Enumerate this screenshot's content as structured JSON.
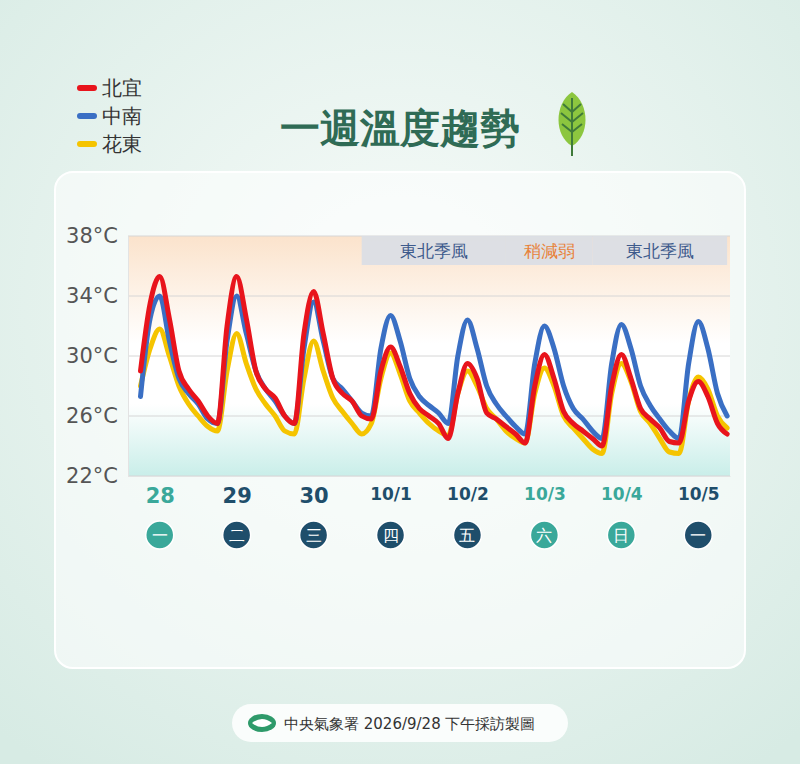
{
  "chart_data": {
    "type": "line",
    "title": "一週溫度趨勢",
    "source": "中央氣象署 2026/9/28 下午採訪製圖",
    "legend": "top-left",
    "grid": true,
    "categories": [
      null,
      null,
      "28",
      null,
      null,
      null,
      null,
      null,
      null,
      null,
      "29",
      null,
      null,
      null,
      null,
      null,
      null,
      null,
      "30",
      null,
      null,
      null,
      null,
      null,
      null,
      null,
      "10/1",
      null,
      null,
      null,
      null,
      null,
      null,
      null,
      "10/2",
      null,
      null,
      null,
      null,
      null,
      null,
      null,
      "10/3",
      null,
      null,
      null,
      null,
      null,
      null,
      null,
      "10/4",
      null,
      null,
      null,
      null,
      null,
      null,
      null,
      "10/5",
      null,
      null,
      null
    ],
    "weekdays": [
      "一",
      "二",
      "三",
      "四",
      "五",
      "六",
      "日",
      "一"
    ],
    "ylim": [
      22,
      38
    ],
    "yticks": [
      {
        "value": 22,
        "label": "22°C"
      },
      {
        "value": 26,
        "label": "26°C"
      },
      {
        "value": 30,
        "label": "30°C"
      },
      {
        "value": 34,
        "label": "34°C"
      },
      {
        "value": 38,
        "label": "38°C"
      }
    ],
    "annotations": [
      {
        "text": "東北季風",
        "start": 23,
        "end": 38,
        "color": "#3d5a8c"
      },
      {
        "text": "稍減弱",
        "start": 38,
        "end": 47,
        "color": "#e8823a"
      },
      {
        "text": "東北季風",
        "start": 47,
        "end": 61,
        "color": "#3d5a8c"
      }
    ],
    "series": [
      {
        "name": "北宜",
        "color": "#e8141c",
        "values": [
          29,
          33.5,
          35.3,
          32.5,
          29,
          27.8,
          27,
          26,
          25.5,
          32,
          35.3,
          32.5,
          29,
          27.8,
          27.2,
          26,
          25.5,
          31.5,
          34.3,
          31.5,
          28.5,
          27.5,
          27,
          26,
          25.8,
          29,
          30.6,
          29.3,
          27.5,
          26.5,
          26,
          25.5,
          24.5,
          27.5,
          29.5,
          28.5,
          26.2,
          25.8,
          25.3,
          24.8,
          24.2,
          28,
          30.1,
          28.5,
          26.3,
          25.5,
          25,
          24.5,
          24,
          28,
          30.1,
          28.5,
          26.5,
          25.8,
          25.2,
          24.3,
          24.2,
          27,
          28.3,
          27.3,
          25.5,
          24.8
        ]
      },
      {
        "name": "中南",
        "color": "#3a6fc4",
        "values": [
          27.3,
          32.5,
          34,
          31,
          28.5,
          27.5,
          26.8,
          25.8,
          25.5,
          31,
          34,
          31.5,
          29,
          27.8,
          27,
          26,
          25.5,
          30.5,
          33.6,
          31,
          28.5,
          27.8,
          27,
          26.2,
          26,
          30.5,
          32.7,
          31,
          28.5,
          27.3,
          26.7,
          26.2,
          25.5,
          30,
          32.4,
          30.5,
          28,
          26.8,
          26,
          25.3,
          24.8,
          29.5,
          32,
          30.5,
          28,
          26.5,
          25.8,
          25,
          24.5,
          29.5,
          32.1,
          30.5,
          28,
          26.7,
          25.8,
          25,
          24.5,
          29.5,
          32.3,
          30.5,
          27.5,
          26
        ]
      },
      {
        "name": "花東",
        "color": "#f5c400",
        "values": [
          28,
          30.5,
          31.8,
          30,
          28,
          26.8,
          26,
          25.3,
          25,
          29,
          31.5,
          29.5,
          27.8,
          26.8,
          26,
          25,
          24.8,
          28.5,
          31,
          29,
          27.2,
          26.3,
          25.5,
          24.8,
          25.5,
          28.5,
          30.2,
          28.8,
          27,
          26.2,
          25.5,
          25,
          24.7,
          27.5,
          29,
          28,
          26.5,
          25.8,
          25,
          24.5,
          24.2,
          27.5,
          29.2,
          28,
          26,
          25.2,
          24.5,
          23.8,
          23.5,
          27.5,
          29.5,
          28.3,
          26.3,
          25.5,
          24.5,
          23.6,
          23.5,
          27,
          28.6,
          27.8,
          26,
          25.2
        ]
      }
    ]
  }
}
